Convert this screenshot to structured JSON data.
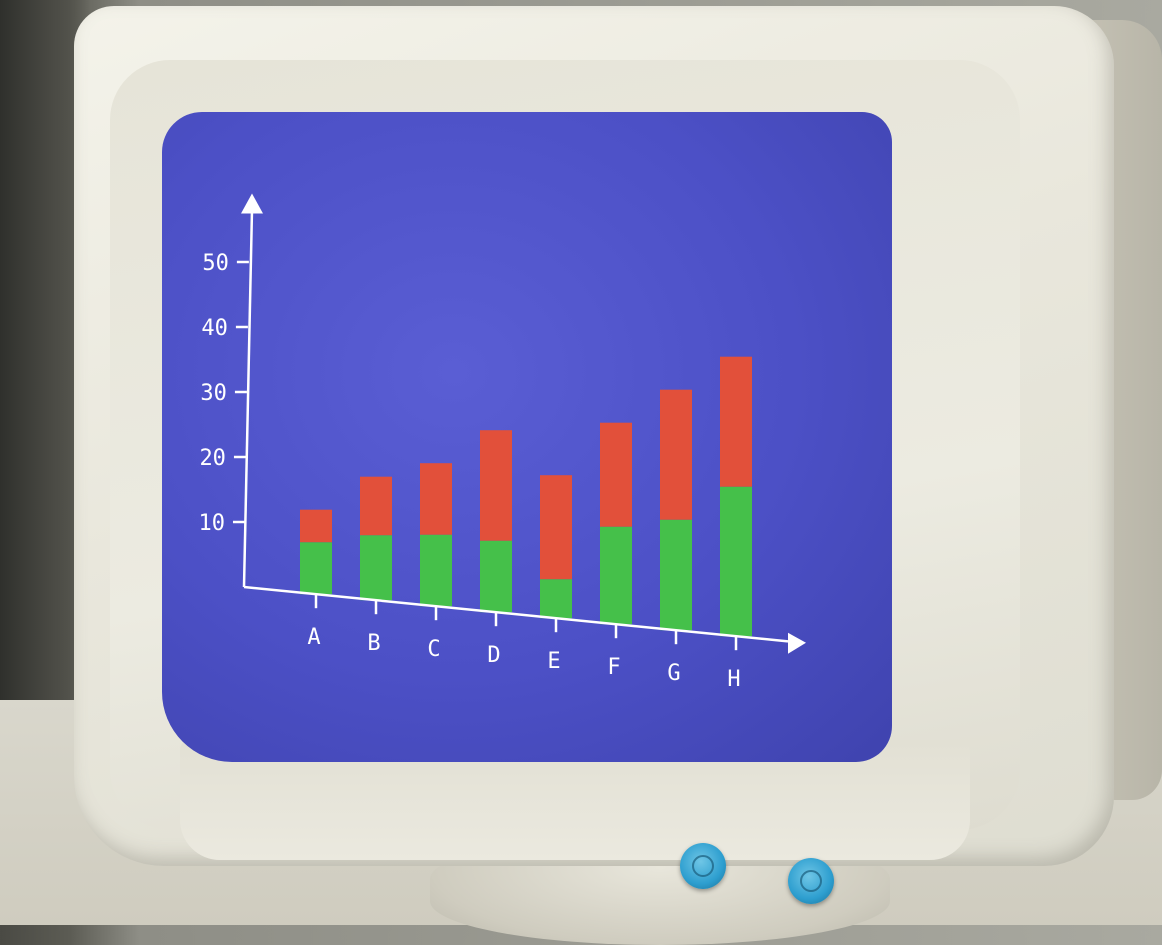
{
  "colors": {
    "screen_blue": "#4c50c6",
    "bar_bottom_green": "#45c04a",
    "bar_top_red": "#e2503a",
    "axis_white": "#ffffff",
    "knob_blue": "#2d9ecf"
  },
  "monitor": {
    "knobs": [
      "knob-icon",
      "knob-icon"
    ]
  },
  "chart_data": {
    "type": "bar",
    "stacked": true,
    "categories": [
      "A",
      "B",
      "C",
      "D",
      "E",
      "F",
      "G",
      "H"
    ],
    "series": [
      {
        "color": "#45c04a",
        "values": [
          8,
          10,
          11,
          11,
          6,
          15,
          17,
          23
        ]
      },
      {
        "color": "#e2503a",
        "values": [
          5,
          9,
          11,
          17,
          16,
          16,
          20,
          20
        ]
      }
    ],
    "yticks": [
      "10",
      "20",
      "30",
      "40",
      "50"
    ],
    "ytick_values": [
      10,
      20,
      30,
      40,
      50
    ],
    "ylim": [
      0,
      55
    ],
    "grid": false,
    "legend": "none",
    "title": "",
    "xlabel": "",
    "ylabel": ""
  }
}
